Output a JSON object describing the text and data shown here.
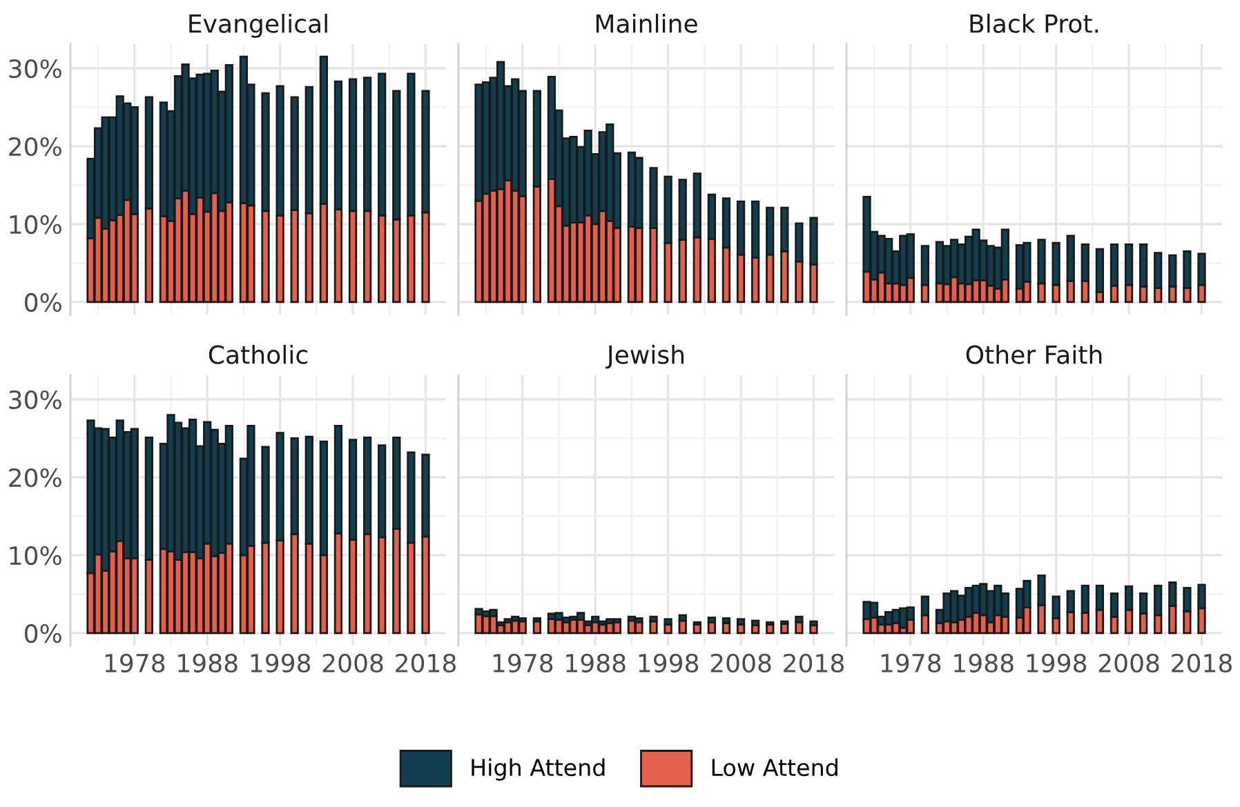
{
  "chart_data": [
    {
      "type": "bar",
      "title": "Evangelical",
      "stacked": true,
      "x": [
        1972,
        1973,
        1974,
        1975,
        1976,
        1977,
        1978,
        1980,
        1982,
        1983,
        1984,
        1985,
        1986,
        1987,
        1988,
        1989,
        1990,
        1991,
        1993,
        1994,
        1996,
        1998,
        2000,
        2002,
        2004,
        2006,
        2008,
        2010,
        2012,
        2014,
        2016,
        2018
      ],
      "xlim": [
        1969.2,
        2020.8
      ],
      "xticks": [
        1978,
        1988,
        1998,
        2008,
        2018
      ],
      "ylim": [
        -1.6,
        33.1
      ],
      "yticks": [
        {
          "value": 0,
          "label": "0%"
        },
        {
          "value": 10,
          "label": "10%"
        },
        {
          "value": 20,
          "label": "20%"
        },
        {
          "value": 30,
          "label": "30%"
        }
      ],
      "tick_labels": "y",
      "grid": true,
      "legend": "bottom",
      "series": [
        {
          "name": "Low Attend",
          "color": "#e5604c",
          "values": [
            8.2,
            10.8,
            9.4,
            10.5,
            11.2,
            13.1,
            11.3,
            12.0,
            11.0,
            10.4,
            13.3,
            14.3,
            11.3,
            13.4,
            11.6,
            14.0,
            11.7,
            12.8,
            12.7,
            12.4,
            11.7,
            11.1,
            11.8,
            11.4,
            12.6,
            11.9,
            11.7,
            11.7,
            11.1,
            10.6,
            11.1,
            11.5
          ]
        },
        {
          "name": "High Attend",
          "color": "#123f50",
          "values": [
            10.2,
            11.5,
            14.3,
            13.2,
            15.2,
            12.4,
            13.7,
            14.3,
            14.6,
            14.1,
            15.7,
            16.2,
            17.4,
            15.8,
            17.7,
            15.7,
            15.3,
            17.6,
            18.8,
            15.5,
            15.1,
            16.6,
            14.5,
            16.2,
            18.9,
            16.4,
            16.9,
            17.1,
            18.2,
            16.5,
            18.2,
            15.6
          ]
        }
      ]
    },
    {
      "type": "bar",
      "title": "Mainline",
      "stacked": true,
      "x": [
        1972,
        1973,
        1974,
        1975,
        1976,
        1977,
        1978,
        1980,
        1982,
        1983,
        1984,
        1985,
        1986,
        1987,
        1988,
        1989,
        1990,
        1991,
        1993,
        1994,
        1996,
        1998,
        2000,
        2002,
        2004,
        2006,
        2008,
        2010,
        2012,
        2014,
        2016,
        2018
      ],
      "xlim": [
        1969.2,
        2020.8
      ],
      "xticks": [
        1978,
        1988,
        1998,
        2008,
        2018
      ],
      "ylim": [
        -1.6,
        33.1
      ],
      "yticks": [
        {
          "value": 0,
          "label": "0%"
        },
        {
          "value": 10,
          "label": "10%"
        },
        {
          "value": 20,
          "label": "20%"
        },
        {
          "value": 30,
          "label": "30%"
        }
      ],
      "tick_labels": false,
      "grid": true,
      "legend": "bottom",
      "series": [
        {
          "name": "Low Attend",
          "color": "#e5604c",
          "values": [
            13.0,
            13.9,
            14.3,
            14.5,
            15.6,
            14.3,
            13.6,
            14.8,
            15.8,
            12.3,
            9.8,
            10.2,
            10.2,
            11.1,
            10.0,
            11.7,
            10.4,
            9.5,
            9.7,
            9.5,
            9.5,
            7.6,
            8.0,
            8.3,
            8.1,
            7.0,
            6.1,
            5.7,
            6.1,
            6.5,
            5.2,
            4.8
          ]
        },
        {
          "name": "High Attend",
          "color": "#123f50",
          "values": [
            14.9,
            14.3,
            14.5,
            16.3,
            12.1,
            14.3,
            13.5,
            12.3,
            13.1,
            12.3,
            11.2,
            11.0,
            9.7,
            10.9,
            9.0,
            10.1,
            12.4,
            9.6,
            9.5,
            9.0,
            7.7,
            8.5,
            7.7,
            8.2,
            5.7,
            6.3,
            6.8,
            7.2,
            6.0,
            5.6,
            4.9,
            6.0
          ]
        }
      ]
    },
    {
      "type": "bar",
      "title": "Black Prot.",
      "stacked": true,
      "x": [
        1972,
        1973,
        1974,
        1975,
        1976,
        1977,
        1978,
        1980,
        1982,
        1983,
        1984,
        1985,
        1986,
        1987,
        1988,
        1989,
        1990,
        1991,
        1993,
        1994,
        1996,
        1998,
        2000,
        2002,
        2004,
        2006,
        2008,
        2010,
        2012,
        2014,
        2016,
        2018
      ],
      "xlim": [
        1969.2,
        2020.8
      ],
      "xticks": [
        1978,
        1988,
        1998,
        2008,
        2018
      ],
      "ylim": [
        -1.6,
        33.1
      ],
      "yticks": [
        {
          "value": 0,
          "label": "0%"
        },
        {
          "value": 10,
          "label": "10%"
        },
        {
          "value": 20,
          "label": "20%"
        },
        {
          "value": 30,
          "label": "30%"
        }
      ],
      "tick_labels": false,
      "grid": true,
      "legend": "bottom",
      "series": [
        {
          "name": "Low Attend",
          "color": "#e5604c",
          "values": [
            3.9,
            2.9,
            3.8,
            2.4,
            2.4,
            2.2,
            3.1,
            2.2,
            2.4,
            2.3,
            3.2,
            2.4,
            2.3,
            2.8,
            2.8,
            2.1,
            1.7,
            2.9,
            1.7,
            2.6,
            2.4,
            2.2,
            2.7,
            2.7,
            1.3,
            2.1,
            2.2,
            2.0,
            1.8,
            2.0,
            1.8,
            2.2
          ]
        },
        {
          "name": "High Attend",
          "color": "#123f50",
          "values": [
            9.6,
            6.1,
            4.7,
            5.7,
            4.1,
            6.3,
            5.6,
            5.0,
            5.3,
            4.9,
            4.8,
            5.0,
            6.1,
            6.5,
            5.1,
            5.1,
            5.3,
            6.4,
            5.6,
            5.0,
            5.6,
            5.4,
            5.8,
            4.7,
            5.5,
            5.3,
            5.2,
            5.4,
            4.5,
            4.0,
            4.7,
            4.0
          ]
        }
      ]
    },
    {
      "type": "bar",
      "title": "Catholic",
      "stacked": true,
      "x": [
        1972,
        1973,
        1974,
        1975,
        1976,
        1977,
        1978,
        1980,
        1982,
        1983,
        1984,
        1985,
        1986,
        1987,
        1988,
        1989,
        1990,
        1991,
        1993,
        1994,
        1996,
        1998,
        2000,
        2002,
        2004,
        2006,
        2008,
        2010,
        2012,
        2014,
        2016,
        2018
      ],
      "xlim": [
        1969.2,
        2020.8
      ],
      "xticks": [
        1978,
        1988,
        1998,
        2008,
        2018
      ],
      "ylim": [
        -1.6,
        33.1
      ],
      "yticks": [
        {
          "value": 0,
          "label": "0%"
        },
        {
          "value": 10,
          "label": "10%"
        },
        {
          "value": 20,
          "label": "20%"
        },
        {
          "value": 30,
          "label": "30%"
        }
      ],
      "grid": true,
      "legend": "bottom",
      "series": [
        {
          "name": "Low Attend",
          "color": "#e5604c",
          "values": [
            7.7,
            10.1,
            8.0,
            10.5,
            11.8,
            9.6,
            9.6,
            9.4,
            10.8,
            10.5,
            9.4,
            10.4,
            10.4,
            9.6,
            11.5,
            9.9,
            10.3,
            11.5,
            10.0,
            11.2,
            11.6,
            11.9,
            12.7,
            11.5,
            10.0,
            12.8,
            12.0,
            12.7,
            12.3,
            13.4,
            11.6,
            12.4
          ]
        },
        {
          "name": "High Attend",
          "color": "#123f50",
          "values": [
            19.6,
            16.2,
            18.2,
            14.6,
            15.5,
            16.2,
            16.6,
            15.7,
            13.5,
            17.5,
            17.6,
            15.9,
            17.0,
            14.4,
            15.6,
            16.2,
            14.0,
            15.1,
            12.4,
            15.4,
            12.3,
            13.8,
            12.3,
            13.7,
            14.6,
            13.8,
            12.8,
            12.4,
            11.8,
            11.7,
            11.6,
            10.5
          ]
        }
      ]
    },
    {
      "type": "bar",
      "title": "Jewish",
      "stacked": true,
      "x": [
        1972,
        1973,
        1974,
        1975,
        1976,
        1977,
        1978,
        1980,
        1982,
        1983,
        1984,
        1985,
        1986,
        1987,
        1988,
        1989,
        1990,
        1991,
        1993,
        1994,
        1996,
        1998,
        2000,
        2002,
        2004,
        2006,
        2008,
        2010,
        2012,
        2014,
        2016,
        2018
      ],
      "xlim": [
        1969.2,
        2020.8
      ],
      "xticks": [
        1978,
        1988,
        1998,
        2008,
        2018
      ],
      "ylim": [
        -1.6,
        33.1
      ],
      "yticks": [
        {
          "value": 0,
          "label": "0%"
        },
        {
          "value": 10,
          "label": "10%"
        },
        {
          "value": 20,
          "label": "20%"
        },
        {
          "value": 30,
          "label": "30%"
        }
      ],
      "tick_labels": "x",
      "grid": true,
      "legend": "bottom",
      "series": [
        {
          "name": "Low Attend",
          "color": "#e5604c",
          "values": [
            2.4,
            2.2,
            2.2,
            1.0,
            1.4,
            1.6,
            1.5,
            1.5,
            1.8,
            1.7,
            1.4,
            1.7,
            1.7,
            1.0,
            1.4,
            1.1,
            1.3,
            1.4,
            1.6,
            1.4,
            1.5,
            1.1,
            1.6,
            1.1,
            1.4,
            1.3,
            1.1,
            1.0,
            1.1,
            1.2,
            1.4,
            1.0
          ]
        },
        {
          "name": "High Attend",
          "color": "#123f50",
          "values": [
            0.7,
            0.6,
            0.8,
            0.4,
            0.4,
            0.5,
            0.4,
            0.4,
            0.7,
            0.9,
            0.6,
            0.4,
            0.9,
            0.5,
            0.7,
            0.4,
            0.5,
            0.4,
            0.5,
            0.5,
            0.6,
            0.7,
            0.7,
            0.3,
            0.6,
            0.6,
            0.7,
            0.6,
            0.3,
            0.3,
            0.7,
            0.5
          ]
        }
      ]
    },
    {
      "type": "bar",
      "title": "Other Faith",
      "stacked": true,
      "x": [
        1972,
        1973,
        1974,
        1975,
        1976,
        1977,
        1978,
        1980,
        1982,
        1983,
        1984,
        1985,
        1986,
        1987,
        1988,
        1989,
        1990,
        1991,
        1993,
        1994,
        1996,
        1998,
        2000,
        2002,
        2004,
        2006,
        2008,
        2010,
        2012,
        2014,
        2016,
        2018
      ],
      "xlim": [
        1969.2,
        2020.8
      ],
      "xticks": [
        1978,
        1988,
        1998,
        2008,
        2018
      ],
      "ylim": [
        -1.6,
        33.1
      ],
      "yticks": [
        {
          "value": 0,
          "label": "0%"
        },
        {
          "value": 10,
          "label": "10%"
        },
        {
          "value": 20,
          "label": "20%"
        },
        {
          "value": 30,
          "label": "30%"
        }
      ],
      "tick_labels": "x",
      "grid": true,
      "legend": "bottom",
      "series": [
        {
          "name": "Low Attend",
          "color": "#e5604c",
          "values": [
            1.8,
            2.0,
            1.1,
            1.1,
            1.3,
            0.7,
            1.7,
            2.3,
            1.3,
            1.5,
            1.4,
            1.7,
            2.1,
            2.6,
            2.3,
            1.4,
            2.3,
            2.1,
            2.0,
            3.3,
            3.6,
            1.9,
            2.7,
            2.6,
            3.0,
            2.1,
            3.0,
            2.5,
            2.3,
            3.5,
            2.8,
            3.2
          ]
        },
        {
          "name": "High Attend",
          "color": "#123f50",
          "values": [
            2.2,
            1.9,
            1.0,
            1.6,
            1.7,
            2.5,
            1.6,
            2.4,
            1.7,
            3.6,
            4.0,
            3.1,
            3.7,
            3.5,
            4.0,
            4.0,
            3.8,
            3.0,
            3.7,
            3.4,
            3.8,
            2.8,
            2.7,
            3.5,
            3.1,
            3.0,
            3.0,
            2.6,
            3.8,
            3.0,
            3.0,
            3.0
          ]
        }
      ]
    }
  ]
}
